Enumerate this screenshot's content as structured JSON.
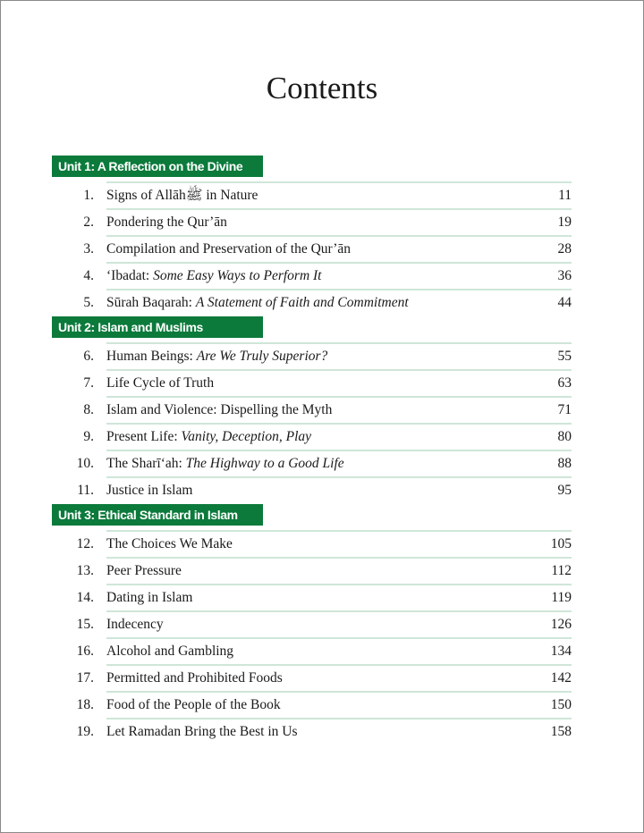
{
  "title": "Contents",
  "units": [
    {
      "label": "Unit 1: A Reflection on the Divine",
      "chapters": [
        {
          "num": "1.",
          "text": "Signs of Allāhﷺ in Nature",
          "italic": "",
          "page": "11"
        },
        {
          "num": "2.",
          "text": "Pondering the Qur’ān",
          "italic": "",
          "page": "19"
        },
        {
          "num": "3.",
          "text": "Compilation and Preservation of  the Qur’ān",
          "italic": "",
          "page": "28"
        },
        {
          "num": "4.",
          "text": "‘Ibadat: ",
          "italic": "Some Easy Ways to Perform It",
          "page": "36"
        },
        {
          "num": "5.",
          "text": "Sūrah Baqarah: ",
          "italic": "A Statement of Faith and Commitment",
          "page": "44"
        }
      ]
    },
    {
      "label": "Unit 2: Islam and Muslims",
      "chapters": [
        {
          "num": "6.",
          "text": "Human Beings: ",
          "italic": "Are We Truly Superior?",
          "page": "55"
        },
        {
          "num": "7.",
          "text": "Life Cycle of Truth",
          "italic": "",
          "page": "63"
        },
        {
          "num": "8.",
          "text": "Islam and Violence: Dispelling the Myth",
          "italic": "",
          "page": "71"
        },
        {
          "num": "9.",
          "text": "Present Life: ",
          "italic": "Vanity, Deception, Play",
          "page": "80"
        },
        {
          "num": "10.",
          "text": "The Sharī‘ah: ",
          "italic": "The Highway to a Good Life",
          "page": "88"
        },
        {
          "num": "11.",
          "text": "Justice in Islam",
          "italic": "",
          "page": "95"
        }
      ]
    },
    {
      "label": "Unit 3: Ethical Standard in Islam",
      "chapters": [
        {
          "num": "12.",
          "text": "The Choices We Make",
          "italic": "",
          "page": "105"
        },
        {
          "num": "13.",
          "text": "Peer Pressure",
          "italic": "",
          "page": "112"
        },
        {
          "num": "14.",
          "text": "Dating in Islam",
          "italic": "",
          "page": "119"
        },
        {
          "num": "15.",
          "text": "Indecency",
          "italic": "",
          "page": "126"
        },
        {
          "num": "16.",
          "text": "Alcohol and Gambling",
          "italic": "",
          "page": "134"
        },
        {
          "num": "17.",
          "text": "Permitted and Prohibited Foods",
          "italic": "",
          "page": "142"
        },
        {
          "num": "18.",
          "text": "Food of the People of the Book",
          "italic": "",
          "page": "150"
        },
        {
          "num": "19.",
          "text": "Let Ramadan Bring the Best in Us",
          "italic": "",
          "page": "158"
        }
      ]
    }
  ],
  "colors": {
    "unit_bar": "#0b7a3b",
    "rule": "#cfe6d8"
  }
}
